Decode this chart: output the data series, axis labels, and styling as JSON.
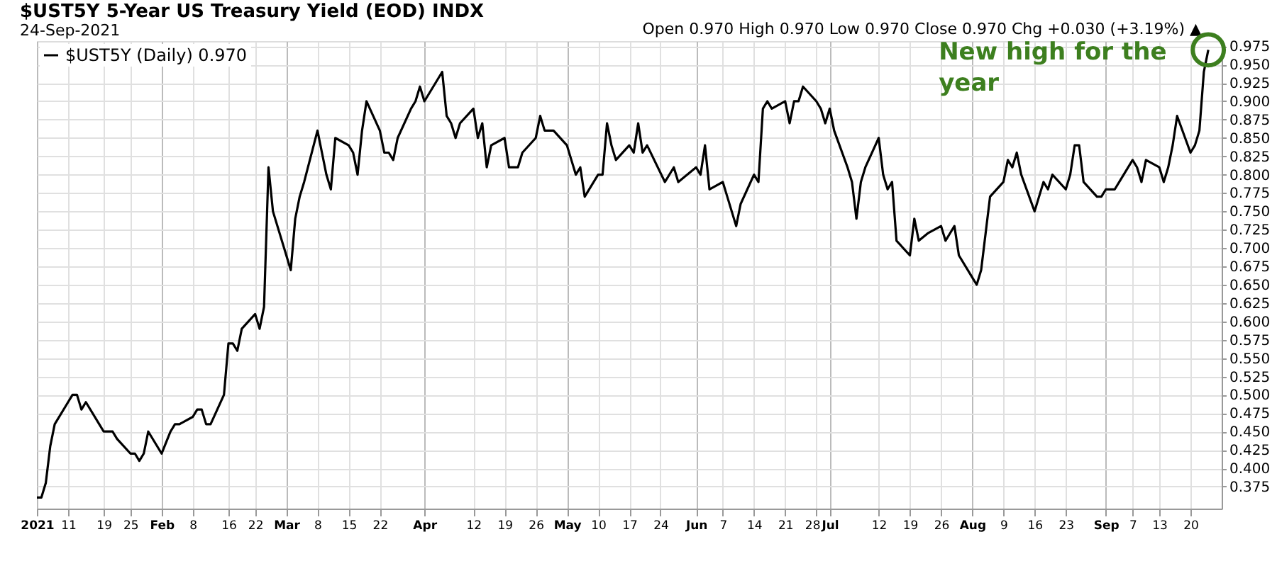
{
  "chart_data": {
    "type": "line",
    "title": "$UST5Y 5-Year US Treasury Yield (EOD) INDX",
    "subtitle": "24-Sep-2021",
    "annotations": [
      "Open 0.970  High 0.970  Low 0.970  Close 0.970  Chg +0.030 (+3.19%) ▲",
      {
        "text": "New high for the year",
        "x": "2021-09-24",
        "y": 0.97
      }
    ],
    "series": [
      {
        "name": "$UST5Y (Daily) 0.970",
        "color": "#000000",
        "x": [
          "2021-01-04",
          "2021-01-05",
          "2021-01-06",
          "2021-01-07",
          "2021-01-08",
          "2021-01-11",
          "2021-01-12",
          "2021-01-13",
          "2021-01-14",
          "2021-01-15",
          "2021-01-18",
          "2021-01-19",
          "2021-01-20",
          "2021-01-21",
          "2021-01-22",
          "2021-01-25",
          "2021-01-26",
          "2021-01-27",
          "2021-01-28",
          "2021-01-29",
          "2021-02-01",
          "2021-02-03",
          "2021-02-04",
          "2021-02-05",
          "2021-02-08",
          "2021-02-09",
          "2021-02-10",
          "2021-02-11",
          "2021-02-12",
          "2021-02-15",
          "2021-02-16",
          "2021-02-17",
          "2021-02-18",
          "2021-02-19",
          "2021-02-22",
          "2021-02-23",
          "2021-02-24",
          "2021-02-25",
          "2021-02-26",
          "2021-03-02",
          "2021-03-03",
          "2021-03-04",
          "2021-03-05",
          "2021-03-08",
          "2021-03-09",
          "2021-03-10",
          "2021-03-11",
          "2021-03-12",
          "2021-03-15",
          "2021-03-16",
          "2021-03-17",
          "2021-03-18",
          "2021-03-19",
          "2021-03-22",
          "2021-03-23",
          "2021-03-24",
          "2021-03-25",
          "2021-03-26",
          "2021-03-29",
          "2021-03-30",
          "2021-03-31",
          "2021-04-01",
          "2021-04-05",
          "2021-04-06",
          "2021-04-07",
          "2021-04-08",
          "2021-04-09",
          "2021-04-12",
          "2021-04-13",
          "2021-04-14",
          "2021-04-15",
          "2021-04-16",
          "2021-04-19",
          "2021-04-20",
          "2021-04-21",
          "2021-04-22",
          "2021-04-23",
          "2021-04-26",
          "2021-04-27",
          "2021-04-28",
          "2021-04-29",
          "2021-04-30",
          "2021-05-03",
          "2021-05-04",
          "2021-05-05",
          "2021-05-06",
          "2021-05-07",
          "2021-05-10",
          "2021-05-11",
          "2021-05-12",
          "2021-05-13",
          "2021-05-14",
          "2021-05-17",
          "2021-05-18",
          "2021-05-19",
          "2021-05-20",
          "2021-05-21",
          "2021-05-25",
          "2021-05-27",
          "2021-05-28",
          "2021-06-01",
          "2021-06-02",
          "2021-06-03",
          "2021-06-04",
          "2021-06-07",
          "2021-06-08",
          "2021-06-09",
          "2021-06-10",
          "2021-06-11",
          "2021-06-14",
          "2021-06-15",
          "2021-06-16",
          "2021-06-17",
          "2021-06-18",
          "2021-06-21",
          "2021-06-22",
          "2021-06-23",
          "2021-06-24",
          "2021-06-25",
          "2021-06-28",
          "2021-06-29",
          "2021-06-30",
          "2021-07-01",
          "2021-07-02",
          "2021-07-05",
          "2021-07-06",
          "2021-07-07",
          "2021-07-08",
          "2021-07-09",
          "2021-07-12",
          "2021-07-13",
          "2021-07-14",
          "2021-07-15",
          "2021-07-16",
          "2021-07-19",
          "2021-07-20",
          "2021-07-21",
          "2021-07-23",
          "2021-07-26",
          "2021-07-27",
          "2021-07-28",
          "2021-07-29",
          "2021-07-30",
          "2021-08-02",
          "2021-08-03",
          "2021-08-04",
          "2021-08-05",
          "2021-08-06",
          "2021-08-09",
          "2021-08-10",
          "2021-08-11",
          "2021-08-12",
          "2021-08-13",
          "2021-08-16",
          "2021-08-17",
          "2021-08-18",
          "2021-08-19",
          "2021-08-20",
          "2021-08-23",
          "2021-08-24",
          "2021-08-25",
          "2021-08-26",
          "2021-08-27",
          "2021-08-30",
          "2021-08-31",
          "2021-09-01",
          "2021-09-02",
          "2021-09-03",
          "2021-09-07",
          "2021-09-08",
          "2021-09-09",
          "2021-09-10",
          "2021-09-13",
          "2021-09-14",
          "2021-09-15",
          "2021-09-16",
          "2021-09-17",
          "2021-09-20",
          "2021-09-21",
          "2021-09-22",
          "2021-09-23",
          "2021-09-24"
        ],
        "values": [
          0.36,
          0.36,
          0.38,
          0.43,
          0.46,
          0.49,
          0.5,
          0.5,
          0.48,
          0.49,
          0.46,
          0.45,
          0.45,
          0.45,
          0.44,
          0.42,
          0.42,
          0.41,
          0.42,
          0.45,
          0.42,
          0.45,
          0.46,
          0.46,
          0.47,
          0.48,
          0.48,
          0.46,
          0.46,
          0.5,
          0.57,
          0.57,
          0.56,
          0.59,
          0.61,
          0.59,
          0.62,
          0.81,
          0.75,
          0.67,
          0.74,
          0.77,
          0.79,
          0.86,
          0.83,
          0.8,
          0.78,
          0.85,
          0.84,
          0.83,
          0.8,
          0.86,
          0.9,
          0.86,
          0.83,
          0.83,
          0.82,
          0.85,
          0.89,
          0.9,
          0.92,
          0.9,
          0.94,
          0.88,
          0.87,
          0.85,
          0.87,
          0.89,
          0.85,
          0.87,
          0.81,
          0.84,
          0.85,
          0.81,
          0.81,
          0.81,
          0.83,
          0.85,
          0.88,
          0.86,
          0.86,
          0.86,
          0.84,
          0.82,
          0.8,
          0.81,
          0.77,
          0.8,
          0.8,
          0.87,
          0.84,
          0.82,
          0.84,
          0.83,
          0.87,
          0.83,
          0.84,
          0.79,
          0.81,
          0.79,
          0.81,
          0.8,
          0.84,
          0.78,
          0.79,
          0.77,
          0.75,
          0.73,
          0.76,
          0.8,
          0.79,
          0.89,
          0.9,
          0.89,
          0.9,
          0.87,
          0.9,
          0.9,
          0.92,
          0.9,
          0.89,
          0.87,
          0.89,
          0.86,
          0.81,
          0.79,
          0.74,
          0.79,
          0.81,
          0.85,
          0.8,
          0.78,
          0.79,
          0.71,
          0.69,
          0.74,
          0.71,
          0.72,
          0.73,
          0.71,
          0.72,
          0.73,
          0.69,
          0.66,
          0.65,
          0.67,
          0.72,
          0.77,
          0.79,
          0.82,
          0.81,
          0.83,
          0.8,
          0.75,
          0.77,
          0.79,
          0.78,
          0.8,
          0.78,
          0.8,
          0.84,
          0.84,
          0.79,
          0.77,
          0.77,
          0.78,
          0.78,
          0.78,
          0.82,
          0.81,
          0.79,
          0.82,
          0.81,
          0.79,
          0.81,
          0.84,
          0.88,
          0.83,
          0.84,
          0.86,
          0.94,
          0.97
        ]
      }
    ],
    "xlim": [
      "2021-01-04",
      "2021-09-27"
    ],
    "xticks": [
      {
        "value": "2021-01-04",
        "label": "2021"
      },
      {
        "value": "2021-01-11",
        "label": "11"
      },
      {
        "value": "2021-01-19",
        "label": "19"
      },
      {
        "value": "2021-01-25",
        "label": "25"
      },
      {
        "value": "2021-02-01",
        "label": "Feb"
      },
      {
        "value": "2021-02-08",
        "label": "8"
      },
      {
        "value": "2021-02-16",
        "label": "16"
      },
      {
        "value": "2021-02-22",
        "label": "22"
      },
      {
        "value": "2021-03-01",
        "label": "Mar"
      },
      {
        "value": "2021-03-08",
        "label": "8"
      },
      {
        "value": "2021-03-15",
        "label": "15"
      },
      {
        "value": "2021-03-22",
        "label": "22"
      },
      {
        "value": "2021-04-01",
        "label": "Apr"
      },
      {
        "value": "2021-04-12",
        "label": "12"
      },
      {
        "value": "2021-04-19",
        "label": "19"
      },
      {
        "value": "2021-04-26",
        "label": "26"
      },
      {
        "value": "2021-05-03",
        "label": "May"
      },
      {
        "value": "2021-05-10",
        "label": "10"
      },
      {
        "value": "2021-05-17",
        "label": "17"
      },
      {
        "value": "2021-05-24",
        "label": "24"
      },
      {
        "value": "2021-06-01",
        "label": "Jun"
      },
      {
        "value": "2021-06-07",
        "label": "7"
      },
      {
        "value": "2021-06-14",
        "label": "14"
      },
      {
        "value": "2021-06-21",
        "label": "21"
      },
      {
        "value": "2021-06-28",
        "label": "28"
      },
      {
        "value": "2021-07-01",
        "label": "Jul"
      },
      {
        "value": "2021-07-12",
        "label": "12"
      },
      {
        "value": "2021-07-19",
        "label": "19"
      },
      {
        "value": "2021-07-26",
        "label": "26"
      },
      {
        "value": "2021-08-02",
        "label": "Aug"
      },
      {
        "value": "2021-08-09",
        "label": "9"
      },
      {
        "value": "2021-08-16",
        "label": "16"
      },
      {
        "value": "2021-08-23",
        "label": "23"
      },
      {
        "value": "2021-09-01",
        "label": "Sep"
      },
      {
        "value": "2021-09-07",
        "label": "7"
      },
      {
        "value": "2021-09-13",
        "label": "13"
      },
      {
        "value": "2021-09-20",
        "label": "20"
      }
    ],
    "ylim": [
      0.345,
      0.982
    ],
    "yticks": [
      0.375,
      {
        "value": 0.4,
        "label": "0.400"
      },
      0.425,
      {
        "value": 0.45,
        "label": "0.450"
      },
      0.475,
      {
        "value": 0.5,
        "label": "0.500"
      },
      0.525,
      {
        "value": 0.55,
        "label": "0.550"
      },
      0.575,
      {
        "value": 0.6,
        "label": "0.600"
      },
      0.625,
      {
        "value": 0.65,
        "label": "0.650"
      },
      0.675,
      {
        "value": 0.7,
        "label": "0.700"
      },
      0.725,
      {
        "value": 0.75,
        "label": "0.750"
      },
      0.775,
      {
        "value": 0.8,
        "label": "0.800"
      },
      0.825,
      {
        "value": 0.85,
        "label": "0.850"
      },
      0.875,
      {
        "value": 0.9,
        "label": "0.900"
      },
      0.925,
      {
        "value": 0.95,
        "label": "0.950"
      },
      0.975
    ],
    "grid": true,
    "legend": "top left"
  }
}
